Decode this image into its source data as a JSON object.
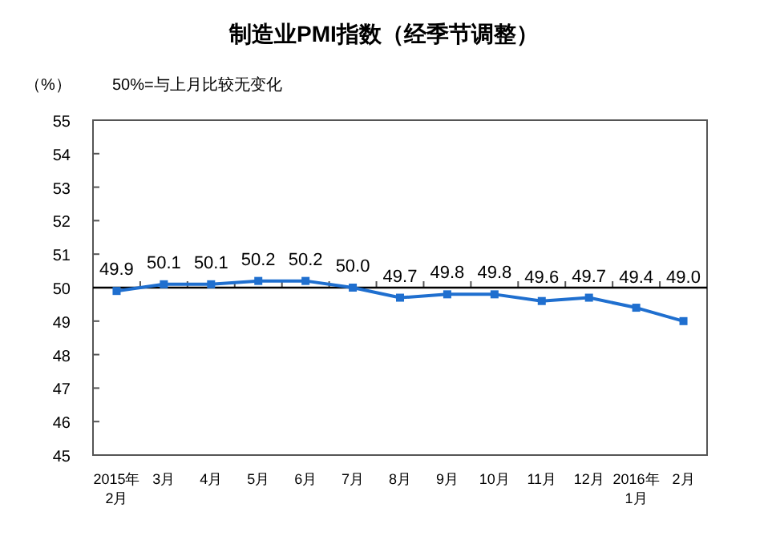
{
  "chart_data": {
    "type": "line",
    "title": "制造业PMI指数（经季节调整）",
    "ylabel": "（%）",
    "annotations": [
      "50%=与上月比较无变化"
    ],
    "categories": [
      "2015年\n2月",
      "3月",
      "4月",
      "5月",
      "6月",
      "7月",
      "8月",
      "9月",
      "10月",
      "11月",
      "12月",
      "2016年\n1月",
      "2月"
    ],
    "series": [
      {
        "color": "#1f6fcf",
        "values": [
          49.9,
          50.1,
          50.1,
          50.2,
          50.2,
          50.0,
          49.7,
          49.8,
          49.8,
          49.6,
          49.7,
          49.4,
          49.0
        ],
        "value_labels": [
          "49.9",
          "50.1",
          "50.1",
          "50.2",
          "50.2",
          "50.0",
          "49.7",
          "49.8",
          "49.8",
          "49.6",
          "49.7",
          "49.4",
          "49.0"
        ]
      }
    ],
    "ylim": [
      45,
      55
    ],
    "yticks": [
      45,
      46,
      47,
      48,
      49,
      50,
      51,
      52,
      53,
      54,
      55
    ],
    "ref_lines": [
      {
        "axis": "y",
        "value": 50,
        "color": "#000000"
      }
    ],
    "marker": "square",
    "line_style": "solid"
  }
}
